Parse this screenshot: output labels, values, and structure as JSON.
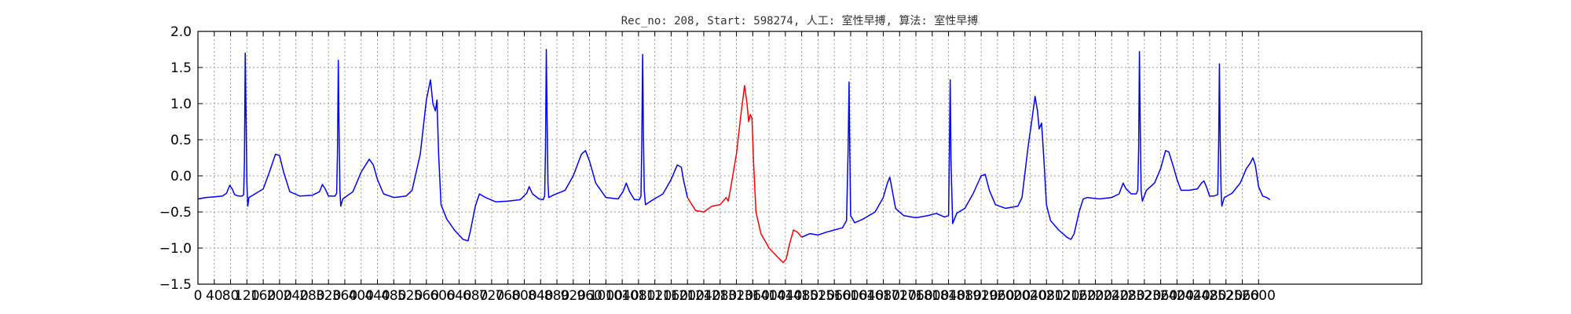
{
  "chart_data": {
    "type": "line",
    "title": "Rec_no: 208, Start: 598274, 人工: 室性早搏, 算法: 室性早搏",
    "xlabel": "",
    "ylabel": "",
    "xlim": [
      0,
      3000
    ],
    "ylim": [
      -1.5,
      2.0
    ],
    "grid": true,
    "y_ticks": [
      -1.5,
      -1.0,
      -0.5,
      0.0,
      0.5,
      1.0,
      1.5,
      2.0
    ],
    "y_tick_labels": [
      "−1.5",
      "−1.0",
      "−0.5",
      "0.0",
      "0.5",
      "1.0",
      "1.5",
      "2.0"
    ],
    "x_ticks": [
      0,
      40,
      80,
      120,
      160,
      200,
      240,
      280,
      320,
      360,
      400,
      440,
      480,
      520,
      560,
      600,
      640,
      680,
      720,
      760,
      800,
      840,
      880,
      920,
      960,
      1000,
      1040,
      1080,
      1120,
      1160,
      1200,
      1240,
      1280,
      1320,
      1360,
      1400,
      1440,
      1480,
      1520,
      1560,
      1600,
      1640,
      1680,
      1720,
      1760,
      1800,
      1840,
      1880,
      1920,
      1960,
      2000,
      2040,
      2080,
      2120,
      2160,
      2200,
      2240,
      2280,
      2320,
      2360,
      2400,
      2440,
      2480,
      2520,
      2560,
      2600
    ],
    "x_tick_labels": [
      "0",
      "40",
      "80",
      "120",
      "160",
      "200",
      "240",
      "280",
      "320",
      "360",
      "400",
      "440",
      "480",
      "520",
      "560",
      "600",
      "640",
      "680",
      "720",
      "760",
      "800",
      "840",
      "880",
      "920",
      "960",
      "1000",
      "1040",
      "1080",
      "1120",
      "1160",
      "1200",
      "1240",
      "1280",
      "1320",
      "1360",
      "1400",
      "1440",
      "1480",
      "1520",
      "1560",
      "1600",
      "1640",
      "1680",
      "1720",
      "1760",
      "1800",
      "1840",
      "1880",
      "1920",
      "1960",
      "2000",
      "2040",
      "2080",
      "2120",
      "2160",
      "2200",
      "2240",
      "2280",
      "2320",
      "2360",
      "2400",
      "2440",
      "2480",
      "2520",
      "2560",
      "2600"
    ],
    "series": [
      {
        "color": "#0000ff",
        "segments": [
          [
            [
              0,
              -0.32
            ],
            [
              20,
              -0.3
            ],
            [
              40,
              -0.29
            ],
            [
              60,
              -0.28
            ],
            [
              70,
              -0.24
            ],
            [
              78,
              -0.13
            ],
            [
              84,
              -0.18
            ],
            [
              90,
              -0.26
            ],
            [
              100,
              -0.28
            ],
            [
              108,
              -0.28
            ],
            [
              112,
              -0.26
            ],
            [
              114,
              0.2
            ],
            [
              116,
              1.7
            ],
            [
              118,
              0.8
            ],
            [
              120,
              -0.1
            ],
            [
              122,
              -0.42
            ],
            [
              125,
              -0.3
            ],
            [
              140,
              -0.25
            ],
            [
              160,
              -0.18
            ],
            [
              175,
              0.05
            ],
            [
              190,
              0.3
            ],
            [
              200,
              0.28
            ],
            [
              210,
              0.05
            ],
            [
              225,
              -0.22
            ],
            [
              250,
              -0.28
            ],
            [
              280,
              -0.27
            ],
            [
              298,
              -0.22
            ],
            [
              305,
              -0.12
            ],
            [
              312,
              -0.18
            ],
            [
              320,
              -0.28
            ],
            [
              336,
              -0.28
            ],
            [
              340,
              -0.24
            ],
            [
              342,
              0.3
            ],
            [
              344,
              1.6
            ],
            [
              346,
              0.6
            ],
            [
              348,
              -0.2
            ],
            [
              350,
              -0.42
            ],
            [
              355,
              -0.32
            ],
            [
              380,
              -0.22
            ],
            [
              400,
              0.05
            ],
            [
              420,
              0.23
            ],
            [
              430,
              0.15
            ],
            [
              440,
              -0.05
            ],
            [
              455,
              -0.25
            ],
            [
              480,
              -0.3
            ],
            [
              510,
              -0.28
            ],
            [
              525,
              -0.2
            ],
            [
              545,
              0.3
            ],
            [
              560,
              1.05
            ],
            [
              570,
              1.33
            ],
            [
              576,
              1.0
            ],
            [
              582,
              0.9
            ],
            [
              586,
              1.05
            ],
            [
              590,
              0.3
            ],
            [
              596,
              -0.4
            ],
            [
              610,
              -0.6
            ],
            [
              630,
              -0.76
            ],
            [
              650,
              -0.88
            ],
            [
              662,
              -0.9
            ],
            [
              668,
              -0.76
            ],
            [
              680,
              -0.42
            ],
            [
              690,
              -0.25
            ],
            [
              705,
              -0.3
            ],
            [
              730,
              -0.36
            ],
            [
              760,
              -0.35
            ],
            [
              790,
              -0.33
            ],
            [
              806,
              -0.24
            ],
            [
              812,
              -0.15
            ],
            [
              820,
              -0.25
            ],
            [
              836,
              -0.32
            ],
            [
              846,
              -0.33
            ],
            [
              850,
              -0.28
            ],
            [
              852,
              0.4
            ],
            [
              854,
              1.75
            ],
            [
              856,
              0.8
            ],
            [
              858,
              -0.1
            ],
            [
              860,
              -0.3
            ],
            [
              870,
              -0.27
            ],
            [
              900,
              -0.2
            ],
            [
              920,
              0.0
            ],
            [
              940,
              0.3
            ],
            [
              950,
              0.35
            ],
            [
              960,
              0.2
            ],
            [
              975,
              -0.1
            ],
            [
              1000,
              -0.3
            ],
            [
              1030,
              -0.32
            ],
            [
              1042,
              -0.22
            ],
            [
              1050,
              -0.1
            ],
            [
              1058,
              -0.22
            ],
            [
              1070,
              -0.33
            ],
            [
              1082,
              -0.33
            ],
            [
              1086,
              -0.28
            ],
            [
              1088,
              0.4
            ],
            [
              1090,
              1.68
            ],
            [
              1092,
              0.6
            ],
            [
              1094,
              -0.2
            ],
            [
              1097,
              -0.4
            ],
            [
              1110,
              -0.35
            ],
            [
              1140,
              -0.25
            ],
            [
              1160,
              -0.05
            ],
            [
              1175,
              0.15
            ],
            [
              1185,
              0.12
            ],
            [
              1190,
              -0.05
            ],
            [
              1200,
              -0.3
            ]
          ]
        ]
      },
      {
        "color": "#ff0000",
        "segments": [
          [
            [
              1200,
              -0.3
            ],
            [
              1220,
              -0.48
            ],
            [
              1240,
              -0.5
            ],
            [
              1260,
              -0.42
            ],
            [
              1280,
              -0.4
            ],
            [
              1295,
              -0.3
            ],
            [
              1300,
              -0.35
            ],
            [
              1305,
              -0.2
            ],
            [
              1320,
              0.3
            ],
            [
              1332,
              0.9
            ],
            [
              1340,
              1.25
            ],
            [
              1346,
              1.0
            ],
            [
              1350,
              0.75
            ],
            [
              1354,
              0.85
            ],
            [
              1358,
              0.8
            ],
            [
              1362,
              0.2
            ],
            [
              1368,
              -0.5
            ],
            [
              1380,
              -0.8
            ],
            [
              1400,
              -1.0
            ],
            [
              1420,
              -1.12
            ],
            [
              1435,
              -1.2
            ],
            [
              1442,
              -1.15
            ],
            [
              1450,
              -0.95
            ],
            [
              1460,
              -0.75
            ],
            [
              1470,
              -0.78
            ],
            [
              1480,
              -0.85
            ]
          ]
        ]
      },
      {
        "color": "#0000ff",
        "segments": [
          [
            [
              1480,
              -0.85
            ],
            [
              1500,
              -0.8
            ],
            [
              1520,
              -0.82
            ],
            [
              1540,
              -0.78
            ],
            [
              1560,
              -0.75
            ],
            [
              1580,
              -0.72
            ],
            [
              1590,
              -0.62
            ],
            [
              1594,
              0.4
            ],
            [
              1596,
              1.3
            ],
            [
              1598,
              0.3
            ],
            [
              1600,
              -0.55
            ],
            [
              1610,
              -0.65
            ],
            [
              1630,
              -0.6
            ],
            [
              1660,
              -0.5
            ],
            [
              1680,
              -0.3
            ],
            [
              1690,
              -0.1
            ],
            [
              1696,
              -0.02
            ],
            [
              1702,
              -0.2
            ],
            [
              1710,
              -0.45
            ],
            [
              1730,
              -0.55
            ],
            [
              1760,
              -0.58
            ],
            [
              1790,
              -0.55
            ],
            [
              1810,
              -0.52
            ],
            [
              1830,
              -0.57
            ],
            [
              1840,
              -0.55
            ],
            [
              1842,
              0.3
            ],
            [
              1844,
              1.33
            ],
            [
              1846,
              0.2
            ],
            [
              1850,
              -0.66
            ],
            [
              1860,
              -0.52
            ],
            [
              1880,
              -0.45
            ],
            [
              1900,
              -0.25
            ],
            [
              1920,
              0.0
            ],
            [
              1930,
              0.02
            ],
            [
              1940,
              -0.2
            ],
            [
              1955,
              -0.4
            ],
            [
              1980,
              -0.45
            ],
            [
              2010,
              -0.42
            ],
            [
              2020,
              -0.3
            ],
            [
              2035,
              0.4
            ],
            [
              2045,
              0.8
            ],
            [
              2052,
              1.1
            ],
            [
              2058,
              0.9
            ],
            [
              2062,
              0.65
            ],
            [
              2068,
              0.73
            ],
            [
              2074,
              0.2
            ],
            [
              2080,
              -0.4
            ],
            [
              2090,
              -0.62
            ],
            [
              2110,
              -0.75
            ],
            [
              2130,
              -0.85
            ],
            [
              2140,
              -0.88
            ],
            [
              2148,
              -0.8
            ],
            [
              2160,
              -0.5
            ],
            [
              2170,
              -0.32
            ],
            [
              2180,
              -0.3
            ],
            [
              2210,
              -0.32
            ],
            [
              2240,
              -0.3
            ],
            [
              2258,
              -0.25
            ],
            [
              2268,
              -0.1
            ],
            [
              2275,
              -0.18
            ],
            [
              2288,
              -0.25
            ],
            [
              2300,
              -0.25
            ],
            [
              2304,
              -0.2
            ],
            [
              2306,
              0.4
            ],
            [
              2308,
              1.72
            ],
            [
              2310,
              0.6
            ],
            [
              2312,
              -0.2
            ],
            [
              2315,
              -0.35
            ],
            [
              2325,
              -0.2
            ],
            [
              2345,
              -0.1
            ],
            [
              2360,
              0.1
            ],
            [
              2372,
              0.35
            ],
            [
              2380,
              0.33
            ],
            [
              2390,
              0.15
            ],
            [
              2400,
              -0.05
            ],
            [
              2410,
              -0.2
            ],
            [
              2430,
              -0.2
            ],
            [
              2450,
              -0.18
            ],
            [
              2460,
              -0.1
            ],
            [
              2466,
              -0.07
            ],
            [
              2472,
              -0.15
            ],
            [
              2480,
              -0.28
            ],
            [
              2490,
              -0.28
            ],
            [
              2500,
              -0.26
            ],
            [
              2502,
              0.4
            ],
            [
              2504,
              1.55
            ],
            [
              2506,
              0.5
            ],
            [
              2508,
              -0.2
            ],
            [
              2510,
              -0.42
            ],
            [
              2516,
              -0.3
            ],
            [
              2535,
              -0.24
            ],
            [
              2555,
              -0.1
            ],
            [
              2570,
              0.1
            ],
            [
              2580,
              0.18
            ],
            [
              2586,
              0.25
            ],
            [
              2592,
              0.15
            ],
            [
              2600,
              -0.15
            ],
            [
              2610,
              -0.28
            ],
            [
              2620,
              -0.3
            ],
            [
              2628,
              -0.33
            ]
          ]
        ]
      }
    ]
  }
}
